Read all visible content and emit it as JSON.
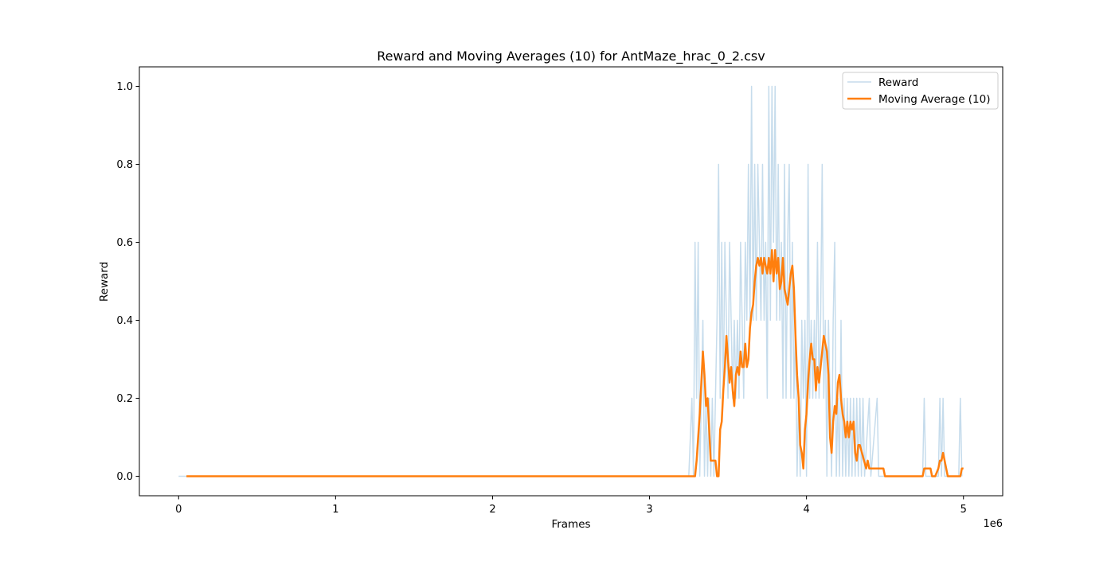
{
  "chart_data": {
    "type": "line",
    "title": "Reward and Moving Averages (10) for AntMaze_hrac_0_2.csv",
    "xlabel": "Frames",
    "ylabel": "Reward",
    "x_offset_text": "1e6",
    "xlim": [
      -250000,
      5250000
    ],
    "ylim": [
      -0.05,
      1.05
    ],
    "x_tick_values": [
      0,
      1000000,
      2000000,
      3000000,
      4000000,
      5000000
    ],
    "x_tick_labels": [
      "0",
      "1",
      "2",
      "3",
      "4",
      "5"
    ],
    "y_tick_values": [
      0.0,
      0.2,
      0.4,
      0.6,
      0.8,
      1.0
    ],
    "y_tick_labels": [
      "0.0",
      "0.2",
      "0.4",
      "0.6",
      "0.8",
      "1.0"
    ],
    "grid": false,
    "legend_position": "top-right",
    "series": [
      {
        "name": "Reward",
        "color": "#c6dcec",
        "points": [
          [
            0,
            0
          ],
          [
            3250000,
            0
          ],
          [
            3270000,
            0.2
          ],
          [
            3280000,
            0
          ],
          [
            3290000,
            0.6
          ],
          [
            3300000,
            0.2
          ],
          [
            3310000,
            0.6
          ],
          [
            3320000,
            0
          ],
          [
            3330000,
            0.2
          ],
          [
            3340000,
            0.4
          ],
          [
            3350000,
            0
          ],
          [
            3360000,
            0.2
          ],
          [
            3370000,
            0
          ],
          [
            3380000,
            0.2
          ],
          [
            3390000,
            0
          ],
          [
            3400000,
            0.2
          ],
          [
            3410000,
            0
          ],
          [
            3420000,
            0.2
          ],
          [
            3430000,
            0.4
          ],
          [
            3440000,
            0.8
          ],
          [
            3450000,
            0.2
          ],
          [
            3460000,
            0.6
          ],
          [
            3470000,
            0.2
          ],
          [
            3480000,
            0.6
          ],
          [
            3490000,
            0.4
          ],
          [
            3500000,
            0.2
          ],
          [
            3510000,
            0.6
          ],
          [
            3520000,
            0.4
          ],
          [
            3530000,
            0.2
          ],
          [
            3540000,
            0.4
          ],
          [
            3550000,
            0.2
          ],
          [
            3560000,
            0.4
          ],
          [
            3570000,
            0.2
          ],
          [
            3580000,
            0.6
          ],
          [
            3590000,
            0.4
          ],
          [
            3600000,
            0.2
          ],
          [
            3610000,
            0.6
          ],
          [
            3620000,
            0.4
          ],
          [
            3630000,
            0.8
          ],
          [
            3640000,
            0.4
          ],
          [
            3650000,
            1.0
          ],
          [
            3660000,
            0.4
          ],
          [
            3670000,
            0.8
          ],
          [
            3680000,
            0.4
          ],
          [
            3690000,
            0.8
          ],
          [
            3700000,
            0.6
          ],
          [
            3710000,
            0.4
          ],
          [
            3720000,
            0.8
          ],
          [
            3730000,
            0.4
          ],
          [
            3740000,
            0.6
          ],
          [
            3750000,
            0.2
          ],
          [
            3760000,
            1.0
          ],
          [
            3770000,
            0.4
          ],
          [
            3780000,
            1.0
          ],
          [
            3790000,
            0.6
          ],
          [
            3800000,
            1.0
          ],
          [
            3810000,
            0.4
          ],
          [
            3820000,
            0.8
          ],
          [
            3830000,
            0.4
          ],
          [
            3840000,
            0.6
          ],
          [
            3850000,
            0.2
          ],
          [
            3860000,
            0.8
          ],
          [
            3870000,
            0.2
          ],
          [
            3880000,
            0.6
          ],
          [
            3890000,
            0.8
          ],
          [
            3900000,
            0.2
          ],
          [
            3910000,
            0.6
          ],
          [
            3920000,
            0.2
          ],
          [
            3930000,
            0.4
          ],
          [
            3940000,
            0
          ],
          [
            3950000,
            0.2
          ],
          [
            3960000,
            0
          ],
          [
            3970000,
            0.4
          ],
          [
            3980000,
            0.2
          ],
          [
            3990000,
            0.4
          ],
          [
            4000000,
            0
          ],
          [
            4010000,
            0.8
          ],
          [
            4020000,
            0.2
          ],
          [
            4030000,
            0.4
          ],
          [
            4040000,
            0.2
          ],
          [
            4050000,
            0.4
          ],
          [
            4060000,
            0.2
          ],
          [
            4070000,
            0.6
          ],
          [
            4080000,
            0.2
          ],
          [
            4090000,
            0.4
          ],
          [
            4100000,
            0.8
          ],
          [
            4110000,
            0.2
          ],
          [
            4120000,
            0.4
          ],
          [
            4130000,
            0
          ],
          [
            4140000,
            0.4
          ],
          [
            4150000,
            0.2
          ],
          [
            4160000,
            0
          ],
          [
            4170000,
            0.4
          ],
          [
            4180000,
            0.6
          ],
          [
            4190000,
            0
          ],
          [
            4200000,
            0.2
          ],
          [
            4210000,
            0
          ],
          [
            4220000,
            0.4
          ],
          [
            4230000,
            0
          ],
          [
            4240000,
            0.2
          ],
          [
            4250000,
            0
          ],
          [
            4260000,
            0.2
          ],
          [
            4270000,
            0
          ],
          [
            4280000,
            0.2
          ],
          [
            4290000,
            0
          ],
          [
            4300000,
            0.2
          ],
          [
            4310000,
            0
          ],
          [
            4320000,
            0.2
          ],
          [
            4330000,
            0
          ],
          [
            4340000,
            0.2
          ],
          [
            4350000,
            0
          ],
          [
            4360000,
            0.2
          ],
          [
            4370000,
            0
          ],
          [
            4400000,
            0.2
          ],
          [
            4410000,
            0
          ],
          [
            4450000,
            0.2
          ],
          [
            4460000,
            0
          ],
          [
            4740000,
            0
          ],
          [
            4750000,
            0.2
          ],
          [
            4760000,
            0
          ],
          [
            4840000,
            0
          ],
          [
            4850000,
            0.2
          ],
          [
            4860000,
            0
          ],
          [
            4870000,
            0.2
          ],
          [
            4880000,
            0
          ],
          [
            4970000,
            0
          ],
          [
            4980000,
            0.2
          ],
          [
            4990000,
            0
          ]
        ]
      },
      {
        "name": "Moving Average (10)",
        "color": "#ff7f0e",
        "points": [
          [
            50000,
            0
          ],
          [
            3290000,
            0
          ],
          [
            3300000,
            0.04
          ],
          [
            3310000,
            0.1
          ],
          [
            3320000,
            0.16
          ],
          [
            3330000,
            0.24
          ],
          [
            3340000,
            0.32
          ],
          [
            3350000,
            0.26
          ],
          [
            3360000,
            0.18
          ],
          [
            3370000,
            0.2
          ],
          [
            3380000,
            0.12
          ],
          [
            3390000,
            0.04
          ],
          [
            3400000,
            0.04
          ],
          [
            3420000,
            0.04
          ],
          [
            3430000,
            0
          ],
          [
            3440000,
            0
          ],
          [
            3450000,
            0.12
          ],
          [
            3460000,
            0.14
          ],
          [
            3470000,
            0.22
          ],
          [
            3480000,
            0.28
          ],
          [
            3490000,
            0.36
          ],
          [
            3500000,
            0.3
          ],
          [
            3510000,
            0.24
          ],
          [
            3520000,
            0.28
          ],
          [
            3530000,
            0.22
          ],
          [
            3540000,
            0.18
          ],
          [
            3550000,
            0.26
          ],
          [
            3560000,
            0.28
          ],
          [
            3570000,
            0.26
          ],
          [
            3580000,
            0.32
          ],
          [
            3590000,
            0.28
          ],
          [
            3600000,
            0.28
          ],
          [
            3610000,
            0.34
          ],
          [
            3620000,
            0.28
          ],
          [
            3630000,
            0.3
          ],
          [
            3640000,
            0.38
          ],
          [
            3650000,
            0.42
          ],
          [
            3660000,
            0.44
          ],
          [
            3670000,
            0.5
          ],
          [
            3680000,
            0.54
          ],
          [
            3690000,
            0.56
          ],
          [
            3700000,
            0.54
          ],
          [
            3710000,
            0.56
          ],
          [
            3720000,
            0.52
          ],
          [
            3730000,
            0.56
          ],
          [
            3740000,
            0.54
          ],
          [
            3750000,
            0.52
          ],
          [
            3760000,
            0.56
          ],
          [
            3770000,
            0.52
          ],
          [
            3780000,
            0.58
          ],
          [
            3790000,
            0.5
          ],
          [
            3800000,
            0.58
          ],
          [
            3810000,
            0.52
          ],
          [
            3820000,
            0.56
          ],
          [
            3830000,
            0.48
          ],
          [
            3840000,
            0.5
          ],
          [
            3850000,
            0.56
          ],
          [
            3860000,
            0.48
          ],
          [
            3870000,
            0.46
          ],
          [
            3880000,
            0.44
          ],
          [
            3890000,
            0.48
          ],
          [
            3900000,
            0.52
          ],
          [
            3910000,
            0.54
          ],
          [
            3920000,
            0.48
          ],
          [
            3930000,
            0.36
          ],
          [
            3940000,
            0.26
          ],
          [
            3950000,
            0.2
          ],
          [
            3960000,
            0.08
          ],
          [
            3970000,
            0.06
          ],
          [
            3980000,
            0.02
          ],
          [
            3990000,
            0.12
          ],
          [
            4000000,
            0.16
          ],
          [
            4010000,
            0.24
          ],
          [
            4020000,
            0.3
          ],
          [
            4030000,
            0.34
          ],
          [
            4040000,
            0.3
          ],
          [
            4050000,
            0.3
          ],
          [
            4060000,
            0.22
          ],
          [
            4070000,
            0.28
          ],
          [
            4080000,
            0.24
          ],
          [
            4090000,
            0.28
          ],
          [
            4100000,
            0.32
          ],
          [
            4110000,
            0.36
          ],
          [
            4120000,
            0.34
          ],
          [
            4130000,
            0.32
          ],
          [
            4140000,
            0.26
          ],
          [
            4150000,
            0.1
          ],
          [
            4160000,
            0.06
          ],
          [
            4170000,
            0.14
          ],
          [
            4180000,
            0.18
          ],
          [
            4190000,
            0.16
          ],
          [
            4200000,
            0.24
          ],
          [
            4210000,
            0.26
          ],
          [
            4220000,
            0.2
          ],
          [
            4230000,
            0.16
          ],
          [
            4240000,
            0.14
          ],
          [
            4250000,
            0.1
          ],
          [
            4260000,
            0.14
          ],
          [
            4270000,
            0.1
          ],
          [
            4280000,
            0.14
          ],
          [
            4290000,
            0.12
          ],
          [
            4300000,
            0.14
          ],
          [
            4310000,
            0.06
          ],
          [
            4320000,
            0.04
          ],
          [
            4330000,
            0.08
          ],
          [
            4340000,
            0.08
          ],
          [
            4380000,
            0.02
          ],
          [
            4390000,
            0.04
          ],
          [
            4400000,
            0.02
          ],
          [
            4490000,
            0.02
          ],
          [
            4500000,
            0
          ],
          [
            4740000,
            0
          ],
          [
            4750000,
            0.02
          ],
          [
            4790000,
            0.02
          ],
          [
            4800000,
            0
          ],
          [
            4820000,
            0
          ],
          [
            4840000,
            0.02
          ],
          [
            4850000,
            0.04
          ],
          [
            4860000,
            0.04
          ],
          [
            4870000,
            0.06
          ],
          [
            4880000,
            0.04
          ],
          [
            4890000,
            0.02
          ],
          [
            4900000,
            0
          ],
          [
            4980000,
            0
          ],
          [
            4990000,
            0.02
          ],
          [
            5000000,
            0.02
          ]
        ]
      }
    ]
  }
}
